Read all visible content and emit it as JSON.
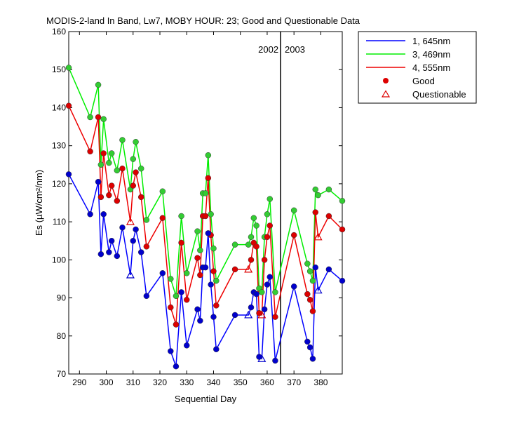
{
  "chart_data": {
    "type": "line",
    "title": "MODIS-2-land In Band,  Lw7, MOBY HOUR: 23;  Good and Questionable Data",
    "xlabel": "Sequential Day",
    "ylabel": "Es (µW/cm²/nm)",
    "xlim": [
      286,
      388
    ],
    "ylim": [
      70,
      160
    ],
    "xticks": [
      290,
      300,
      310,
      320,
      330,
      340,
      350,
      360,
      370,
      380
    ],
    "yticks": [
      70,
      80,
      90,
      100,
      110,
      120,
      130,
      140,
      150,
      160
    ],
    "grid": false,
    "legend_position": "outside-top-right",
    "year_divider": {
      "x": 365,
      "left_label": "2002",
      "right_label": "2003"
    },
    "legend": {
      "good": "Good",
      "questionable": "Questionable"
    },
    "series": [
      {
        "name": "1, 645nm",
        "color": "#0000ff",
        "marker_color": "#0000cc",
        "x": [
          286,
          294,
          297,
          298,
          299,
          301,
          302,
          304,
          306,
          309,
          310,
          311,
          313,
          315,
          321,
          324,
          326,
          328,
          330,
          334,
          335,
          336,
          337,
          338,
          339,
          340,
          341,
          348,
          353,
          354,
          355,
          356,
          357,
          358,
          359,
          360,
          361,
          363,
          370,
          375,
          376,
          377,
          378,
          379,
          383,
          388
        ],
        "y": [
          122.5,
          112,
          120.5,
          101.5,
          112,
          102,
          105,
          101,
          108.5,
          96,
          105,
          108,
          102,
          90.5,
          96.5,
          76,
          72,
          91.5,
          77.5,
          87,
          84,
          98,
          98,
          107,
          93.5,
          85,
          76.5,
          85.5,
          85.5,
          87.5,
          91.5,
          91,
          74.5,
          74,
          87,
          93.5,
          95.5,
          73.5,
          93,
          78.5,
          77,
          74,
          98,
          92,
          97.5,
          94.5
        ],
        "quality": [
          "g",
          "g",
          "g",
          "g",
          "g",
          "g",
          "g",
          "g",
          "g",
          "q",
          "g",
          "g",
          "g",
          "g",
          "g",
          "g",
          "g",
          "g",
          "g",
          "g",
          "g",
          "g",
          "g",
          "g",
          "g",
          "g",
          "g",
          "g",
          "q",
          "g",
          "g",
          "g",
          "g",
          "q",
          "g",
          "g",
          "g",
          "g",
          "g",
          "g",
          "g",
          "g",
          "g",
          "q",
          "g",
          "g"
        ]
      },
      {
        "name": "3, 469nm",
        "color": "#00ee00",
        "marker_color": "#33cc33",
        "x": [
          286,
          294,
          297,
          298,
          299,
          301,
          302,
          304,
          306,
          309,
          310,
          311,
          313,
          315,
          321,
          324,
          326,
          328,
          330,
          334,
          335,
          336,
          337,
          338,
          339,
          340,
          341,
          348,
          353,
          354,
          355,
          356,
          357,
          358,
          359,
          360,
          361,
          363,
          370,
          375,
          376,
          377,
          378,
          379,
          383,
          388
        ],
        "y": [
          150.5,
          137.5,
          146,
          125,
          137,
          125.5,
          128,
          123.5,
          131.5,
          118.5,
          126.5,
          131,
          124,
          110.5,
          118,
          95,
          90.5,
          111.5,
          96.5,
          107.5,
          102.5,
          117.5,
          117.5,
          127.5,
          112,
          103,
          94.5,
          104,
          104,
          106,
          111,
          109,
          92.5,
          91.5,
          106,
          112,
          116,
          91.5,
          113,
          99,
          97,
          94.5,
          118.5,
          117,
          118.5,
          115.5
        ],
        "quality": [
          "g",
          "g",
          "g",
          "g",
          "g",
          "g",
          "g",
          "g",
          "g",
          "g",
          "g",
          "g",
          "g",
          "g",
          "g",
          "g",
          "g",
          "g",
          "g",
          "g",
          "g",
          "g",
          "g",
          "g",
          "g",
          "g",
          "g",
          "g",
          "g",
          "g",
          "g",
          "g",
          "g",
          "g",
          "g",
          "g",
          "g",
          "g",
          "g",
          "g",
          "g",
          "g",
          "g",
          "g",
          "g",
          "g"
        ]
      },
      {
        "name": "4, 555nm",
        "color": "#ee0000",
        "marker_color": "#dd0000",
        "x": [
          286,
          294,
          297,
          298,
          299,
          301,
          302,
          304,
          306,
          309,
          310,
          311,
          313,
          315,
          321,
          324,
          326,
          328,
          330,
          334,
          335,
          336,
          337,
          338,
          339,
          340,
          341,
          348,
          353,
          354,
          355,
          356,
          357,
          358,
          359,
          360,
          361,
          363,
          370,
          375,
          376,
          377,
          378,
          379,
          383,
          388
        ],
        "y": [
          140.5,
          128.5,
          137.5,
          116.5,
          128,
          117,
          119.5,
          115.5,
          124,
          110,
          119.5,
          123,
          116.5,
          103.5,
          111,
          87.5,
          83,
          104.5,
          89.5,
          100.5,
          96,
          111.5,
          111.5,
          121.5,
          106.5,
          97,
          88,
          97.5,
          97.5,
          100,
          104.5,
          103.5,
          86,
          85.5,
          100,
          106,
          109,
          85,
          106.5,
          91,
          89.5,
          86.5,
          112.5,
          106,
          111.5,
          108
        ],
        "quality": [
          "g",
          "g",
          "g",
          "g",
          "g",
          "g",
          "g",
          "g",
          "g",
          "q",
          "g",
          "g",
          "g",
          "g",
          "g",
          "g",
          "g",
          "g",
          "g",
          "g",
          "g",
          "g",
          "g",
          "g",
          "g",
          "g",
          "g",
          "g",
          "q",
          "g",
          "g",
          "g",
          "g",
          "q",
          "g",
          "g",
          "g",
          "g",
          "g",
          "g",
          "g",
          "g",
          "g",
          "q",
          "g",
          "g"
        ]
      }
    ]
  }
}
